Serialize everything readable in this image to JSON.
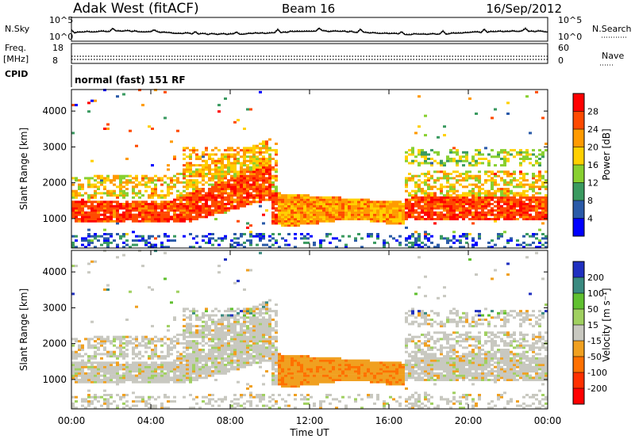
{
  "header": {
    "station": "Adak West (fitACF)",
    "beam": "Beam 16",
    "date": "16/Sep/2012"
  },
  "side_labels": {
    "nsky": "N.Sky",
    "freq_line1": "Freq.",
    "freq_line2": "[MHz]",
    "cpid": "CPID",
    "nsearch": "N.Search",
    "nave": "Nave",
    "mode": "normal (fast) 151 RF"
  },
  "chart_data": [
    {
      "type": "line",
      "name": "noise-panel",
      "left_axis_ticks": [
        "10^5",
        "10^0"
      ],
      "right_axis_ticks": [
        "10^5",
        "10^0"
      ],
      "left_label": "N.Sky",
      "right_label": "N.Search"
    },
    {
      "type": "line",
      "name": "frequency-panel",
      "left_axis_ticks": [
        "18",
        "8"
      ],
      "right_axis_ticks": [
        "60",
        "0"
      ],
      "left_label": "Freq. [MHz]",
      "right_label": "Nave"
    },
    {
      "type": "heatmap",
      "name": "power",
      "ylabel": "Slant Range [km]",
      "xlabel": "Time UT",
      "ylim": [
        180,
        4600
      ],
      "y_ticks": [
        "1000",
        "2000",
        "3000",
        "4000"
      ],
      "x_ticks": [
        "00:00",
        "04:00",
        "08:00",
        "12:00",
        "16:00",
        "20:00",
        "00:00"
      ],
      "colorbar_label": "Power [dB]",
      "colorbar_ticks": [
        "28",
        "24",
        "20",
        "16",
        "12",
        "8",
        "4"
      ],
      "colorbar_colors": [
        "#ff0000",
        "#ff4a00",
        "#ff9a00",
        "#ffd000",
        "#88d030",
        "#3a9a60",
        "#2a5aa8",
        "#0000ff"
      ]
    },
    {
      "type": "heatmap",
      "name": "velocity",
      "ylabel": "Slant Range [km]",
      "xlabel": "Time UT",
      "ylim": [
        180,
        4600
      ],
      "y_ticks": [
        "1000",
        "2000",
        "3000",
        "4000"
      ],
      "x_ticks": [
        "00:00",
        "04:00",
        "08:00",
        "12:00",
        "16:00",
        "20:00",
        "00:00"
      ],
      "colorbar_label": "Velocity [m s⁻¹]",
      "colorbar_ticks": [
        "200",
        "100",
        "50",
        "15",
        "-15",
        "-50",
        "-100",
        "-200"
      ],
      "colorbar_colors": [
        "#2030c0",
        "#3a8a80",
        "#60c030",
        "#a0d060",
        "#c8c8c0",
        "#f0a020",
        "#ff7000",
        "#ff3000",
        "#ff0000"
      ]
    }
  ],
  "time_axis_label": "Time UT"
}
